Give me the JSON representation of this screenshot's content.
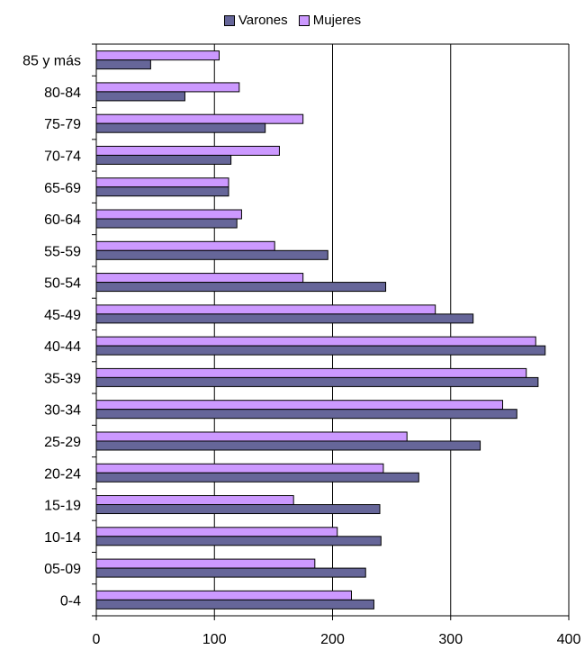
{
  "chart_data": {
    "type": "bar",
    "orientation": "horizontal",
    "categories": [
      "0-4",
      "05-09",
      "10-14",
      "15-19",
      "20-24",
      "25-29",
      "30-34",
      "35-39",
      "40-44",
      "45-49",
      "50-54",
      "55-59",
      "60-64",
      "65-69",
      "70-74",
      "75-79",
      "80-84",
      "85 y más"
    ],
    "series": [
      {
        "name": "Mujeres",
        "color": "#cc99ff",
        "values": [
          216,
          185,
          204,
          167,
          243,
          263,
          344,
          364,
          372,
          287,
          175,
          151,
          123,
          112,
          155,
          175,
          121,
          104
        ]
      },
      {
        "name": "Varones",
        "color": "#666699",
        "values": [
          235,
          228,
          241,
          240,
          273,
          325,
          356,
          374,
          380,
          319,
          245,
          196,
          119,
          112,
          114,
          143,
          75,
          46
        ]
      }
    ],
    "xlim": [
      0,
      400
    ],
    "xticks": [
      "0",
      "100",
      "200",
      "300",
      "400"
    ],
    "grid": "vertical",
    "legend_position": "top",
    "legend": [
      {
        "label": "Varones",
        "color": "#666699"
      },
      {
        "label": "Mujeres",
        "color": "#cc99ff"
      }
    ]
  }
}
